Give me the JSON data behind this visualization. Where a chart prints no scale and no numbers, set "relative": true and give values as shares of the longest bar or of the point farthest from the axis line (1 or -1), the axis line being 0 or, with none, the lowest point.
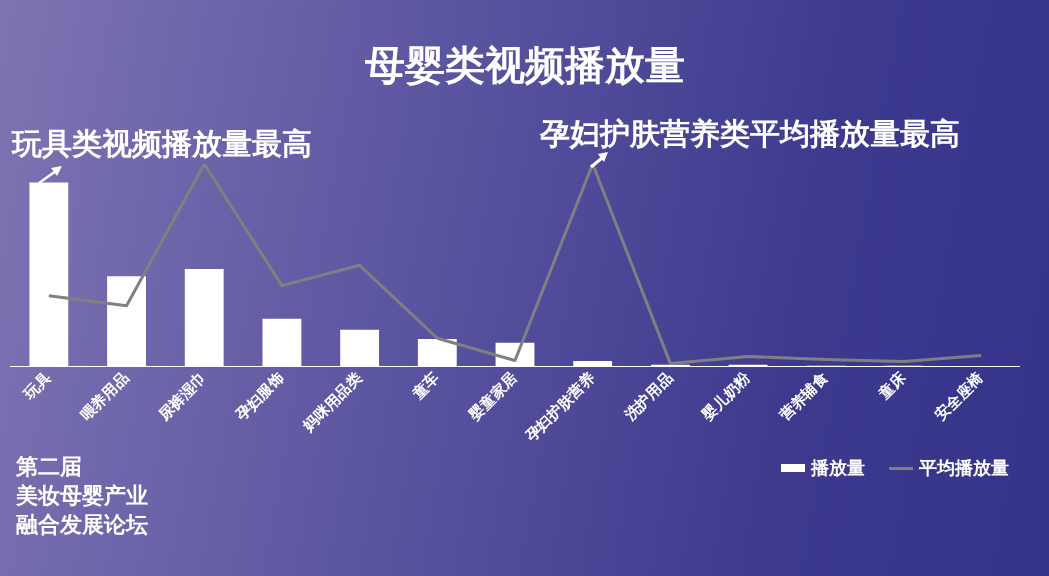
{
  "chart_data": {
    "type": "bar",
    "title": "母婴类视频播放量",
    "relative": true,
    "legend": "bottom right",
    "categories": [
      "玩具",
      "喂养用品",
      "尿裤湿巾",
      "孕妇服饰",
      "妈咪用品类",
      "童车",
      "婴童家居",
      "孕妇护肤营养",
      "洗护用品",
      "婴儿奶粉",
      "营养辅食",
      "童床",
      "安全座椅"
    ],
    "series": [
      {
        "name": "播放量",
        "color": "#ffffff",
        "values": [
          1,
          0.49,
          0.53,
          0.26,
          0.2,
          0.15,
          0.13,
          0.03,
          0.01,
          0.01,
          0.005,
          0.005,
          0.003
        ]
      },
      {
        "name": "平均播放量",
        "type": "line",
        "axis": "y2",
        "color": "#808080",
        "values": [
          0.35,
          0.3,
          1,
          0.4,
          0.5,
          0.14,
          0.03,
          1,
          0.015,
          0.05,
          0.035,
          0.025,
          0.055
        ]
      }
    ],
    "annotations": [
      "玩具类视频播放量最高",
      "孕妇护肤营养类平均播放量最高",
      "第二届",
      "美妆母婴产业",
      "融合发展论坛"
    ]
  }
}
